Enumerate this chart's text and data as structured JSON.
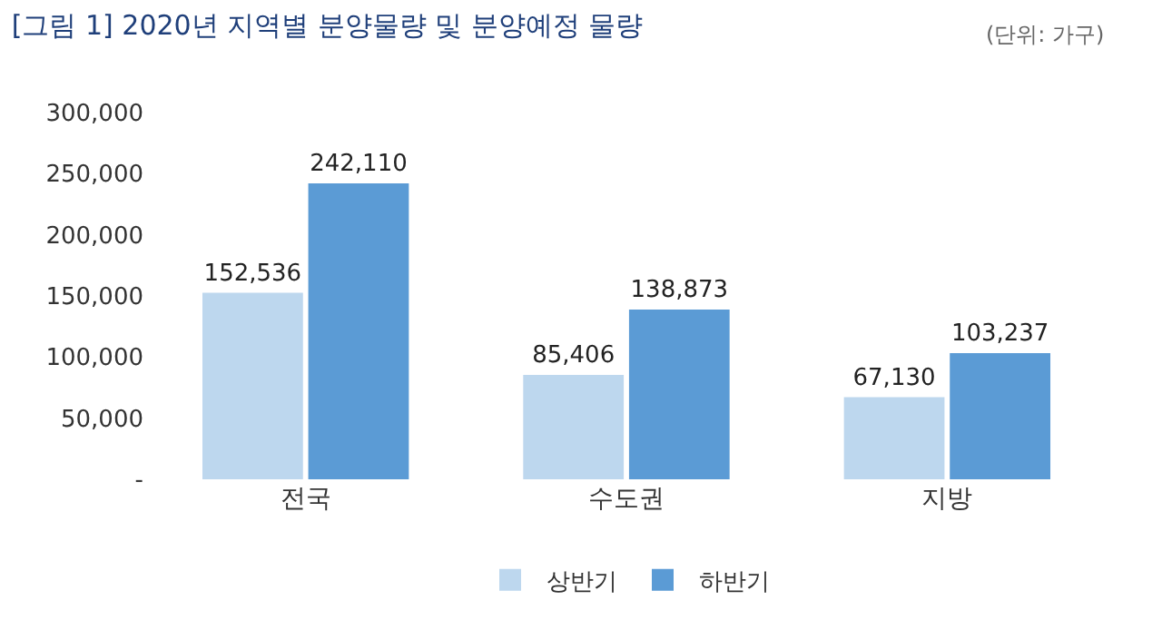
{
  "chart_data": {
    "type": "bar",
    "title": "[그림 1] 2020년 지역별 분양물량 및 분양예정 물량",
    "annotations": [
      "(단위: 가구)"
    ],
    "categories": [
      "전국",
      "수도권",
      "지방"
    ],
    "series": [
      {
        "name": "상반기",
        "color": "#bdd7ee",
        "values": [
          152536,
          85406,
          67130
        ],
        "value_labels": [
          "152,536",
          "85,406",
          "67,130"
        ]
      },
      {
        "name": "하반기",
        "color": "#5b9bd5",
        "values": [
          242110,
          138873,
          103237
        ],
        "value_labels": [
          "242,110",
          "138,873",
          "103,237"
        ]
      }
    ],
    "ylim": [
      0,
      300000
    ],
    "yticks": [
      {
        "value": 0,
        "label": "-"
      },
      {
        "value": 50000,
        "label": "50,000"
      },
      {
        "value": 100000,
        "label": "100,000"
      },
      {
        "value": 150000,
        "label": "150,000"
      },
      {
        "value": 200000,
        "label": "200,000"
      },
      {
        "value": 250000,
        "label": "250,000"
      },
      {
        "value": 300000,
        "label": "300,000"
      }
    ],
    "grid": false,
    "legend": "bottom"
  }
}
